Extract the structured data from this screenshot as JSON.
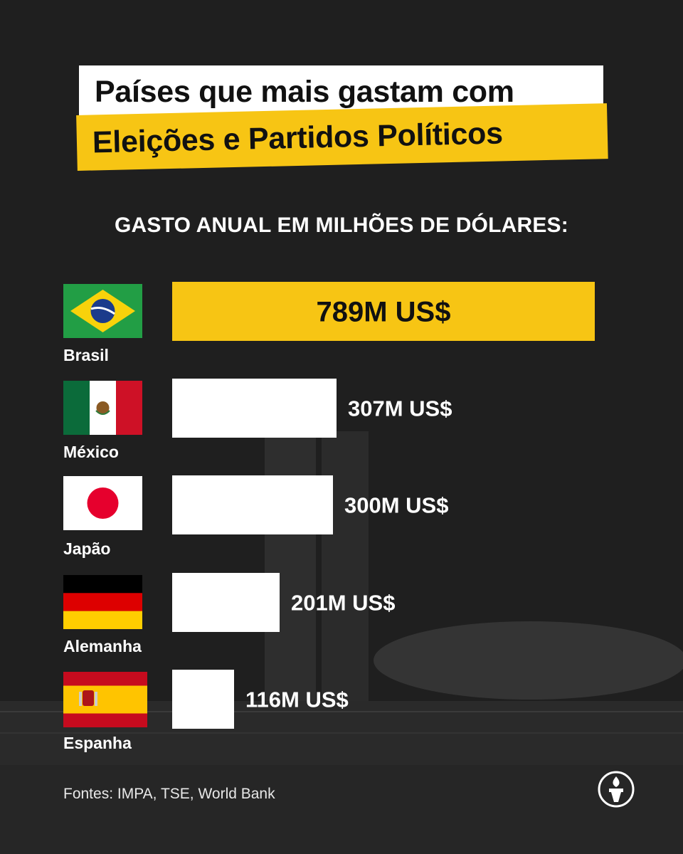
{
  "title": {
    "line1": "Países que mais gastam com",
    "line2": "Eleições e Partidos Políticos"
  },
  "subtitle": "GASTO ANUAL EM MILHÕES DE DÓLARES:",
  "source": "Fontes: IMPA, TSE, World Bank",
  "colors": {
    "highlight": "#f7c514",
    "bar": "#ffffff",
    "background": "#1f1f1f"
  },
  "chart_data": {
    "type": "bar",
    "orientation": "horizontal",
    "categories": [
      "Brasil",
      "México",
      "Japão",
      "Alemanha",
      "Espanha"
    ],
    "values": [
      789,
      307,
      300,
      201,
      116
    ],
    "value_labels": [
      "789M US$",
      "307M US$",
      "300M US$",
      "201M US$",
      "116M US$"
    ],
    "flags": [
      "flag-brazil-icon",
      "flag-mexico-icon",
      "flag-japan-icon",
      "flag-germany-icon",
      "flag-spain-icon"
    ],
    "highlight_index": 0,
    "xlim": [
      0,
      789
    ]
  }
}
